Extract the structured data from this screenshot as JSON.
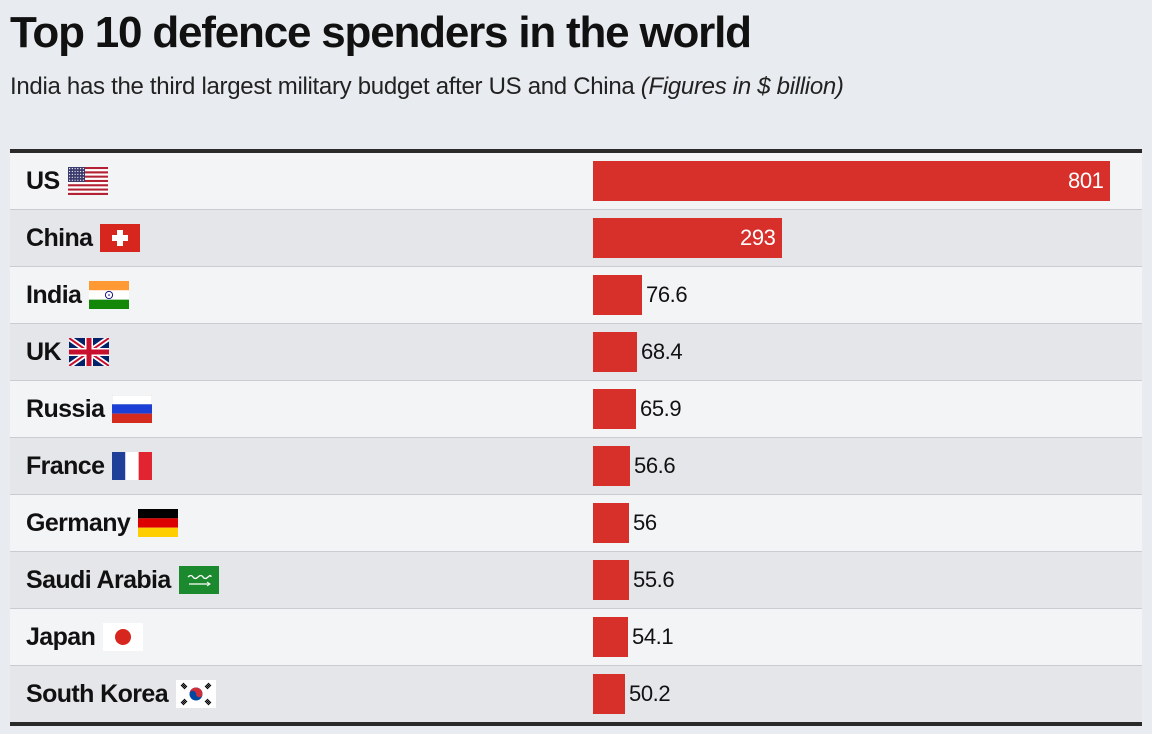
{
  "title": "Top 10 defence spenders in the world",
  "subtitle": "India has the third largest military budget after US and China",
  "subtitle_note": "(Figures in $ billion)",
  "colors": {
    "bar": "#d7302b",
    "background": "#e8ebef"
  },
  "chart_data": {
    "type": "bar",
    "orientation": "horizontal",
    "title": "Top 10 defence spenders in the world",
    "unit": "$ billion",
    "categories": [
      "US",
      "China",
      "India",
      "UK",
      "Russia",
      "France",
      "Germany",
      "Saudi Arabia",
      "Japan",
      "South Korea"
    ],
    "values": [
      801,
      293,
      76.6,
      68.4,
      65.9,
      56.6,
      56,
      55.6,
      54.1,
      50.2
    ],
    "value_labels": [
      "801",
      "293",
      "76.6",
      "68.4",
      "65.9",
      "56.6",
      "56",
      "55.6",
      "54.1",
      "50.2"
    ],
    "flags": [
      "us-flag-icon",
      "china-flag-icon",
      "india-flag-icon",
      "uk-flag-icon",
      "russia-flag-icon",
      "france-flag-icon",
      "germany-flag-icon",
      "saudi-arabia-flag-icon",
      "japan-flag-icon",
      "south-korea-flag-icon"
    ],
    "xlim": [
      0,
      801
    ]
  }
}
